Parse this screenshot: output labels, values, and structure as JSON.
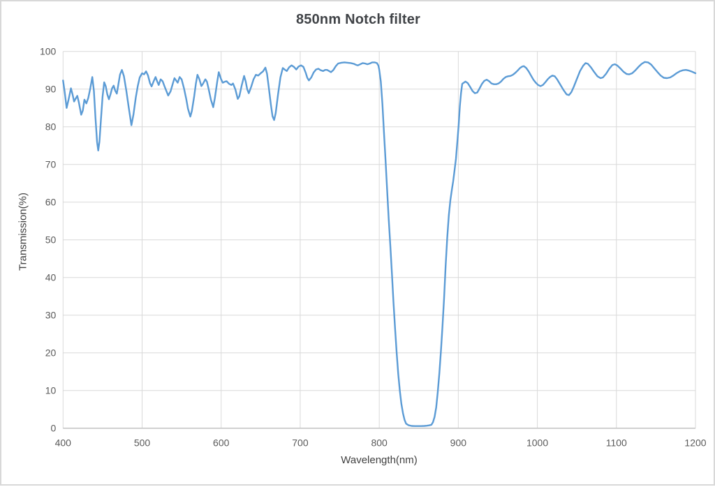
{
  "chart_data": {
    "type": "line",
    "title": "850nm Notch filter",
    "xlabel": "Wavelength(nm)",
    "ylabel": "Transmission(%)",
    "xlim": [
      400,
      1200
    ],
    "ylim": [
      0,
      100
    ],
    "x_ticks": [
      400,
      500,
      600,
      700,
      800,
      900,
      1000,
      1100,
      1200
    ],
    "y_ticks": [
      0,
      10,
      20,
      30,
      40,
      50,
      60,
      70,
      80,
      90,
      100
    ],
    "grid": true,
    "legend": "none",
    "colors": {
      "line": "#5B9BD5",
      "grid": "#D9D9D9",
      "axis": "#BFBFBF",
      "tick_text": "#595959",
      "title_text": "#404347"
    },
    "series": [
      {
        "points": [
          [
            400,
            92.3
          ],
          [
            402,
            89.3
          ],
          [
            404.5,
            85.0
          ],
          [
            407,
            87.2
          ],
          [
            410,
            90.2
          ],
          [
            412,
            88.6
          ],
          [
            414,
            86.7
          ],
          [
            416,
            87.5
          ],
          [
            418,
            88.2
          ],
          [
            420,
            86.5
          ],
          [
            423,
            83.2
          ],
          [
            425,
            84.3
          ],
          [
            427,
            87.2
          ],
          [
            429.5,
            86.2
          ],
          [
            432,
            87.7
          ],
          [
            434.5,
            90.3
          ],
          [
            437,
            93.2
          ],
          [
            439,
            89.5
          ],
          [
            441,
            82.5
          ],
          [
            443,
            76.0
          ],
          [
            444.5,
            73.7
          ],
          [
            446,
            76.0
          ],
          [
            448,
            82.0
          ],
          [
            450,
            88.0
          ],
          [
            452,
            91.8
          ],
          [
            454,
            90.8
          ],
          [
            456,
            88.6
          ],
          [
            458,
            87.3
          ],
          [
            460,
            88.6
          ],
          [
            462,
            90.2
          ],
          [
            464,
            90.9
          ],
          [
            466,
            89.6
          ],
          [
            468,
            88.8
          ],
          [
            470,
            91.2
          ],
          [
            472,
            93.8
          ],
          [
            474.5,
            95.1
          ],
          [
            477,
            93.4
          ],
          [
            480,
            89.6
          ],
          [
            483,
            85.2
          ],
          [
            486.5,
            80.4
          ],
          [
            489,
            83.2
          ],
          [
            492,
            87.8
          ],
          [
            494.5,
            90.8
          ],
          [
            497,
            93.1
          ],
          [
            500,
            94.2
          ],
          [
            502.5,
            93.9
          ],
          [
            505,
            94.7
          ],
          [
            507.5,
            93.6
          ],
          [
            510,
            91.6
          ],
          [
            512,
            90.7
          ],
          [
            514.5,
            92.0
          ],
          [
            517,
            93.2
          ],
          [
            519,
            92.1
          ],
          [
            521,
            91.1
          ],
          [
            523.5,
            92.6
          ],
          [
            526,
            92.1
          ],
          [
            529,
            90.4
          ],
          [
            533,
            88.3
          ],
          [
            536,
            89.4
          ],
          [
            539,
            91.6
          ],
          [
            541,
            92.9
          ],
          [
            543,
            92.3
          ],
          [
            545,
            91.7
          ],
          [
            547.5,
            93.2
          ],
          [
            550,
            92.6
          ],
          [
            553,
            90.2
          ],
          [
            556,
            87.2
          ],
          [
            558,
            84.8
          ],
          [
            561,
            82.7
          ],
          [
            563,
            84.2
          ],
          [
            566,
            88.2
          ],
          [
            568,
            91.4
          ],
          [
            570,
            93.8
          ],
          [
            572.5,
            92.6
          ],
          [
            575,
            90.8
          ],
          [
            577,
            91.4
          ],
          [
            580,
            92.6
          ],
          [
            582,
            92.0
          ],
          [
            584,
            90.2
          ],
          [
            587,
            87.2
          ],
          [
            590,
            85.2
          ],
          [
            592,
            87.6
          ],
          [
            595,
            92.0
          ],
          [
            597,
            94.5
          ],
          [
            600,
            92.6
          ],
          [
            602,
            91.7
          ],
          [
            605,
            92.0
          ],
          [
            607,
            92.1
          ],
          [
            610,
            91.4
          ],
          [
            613,
            91.1
          ],
          [
            615,
            91.5
          ],
          [
            618,
            89.9
          ],
          [
            621,
            87.4
          ],
          [
            623,
            88.1
          ],
          [
            626,
            91.0
          ],
          [
            629,
            93.5
          ],
          [
            631,
            92.1
          ],
          [
            633,
            89.9
          ],
          [
            635,
            88.9
          ],
          [
            638,
            90.6
          ],
          [
            641,
            92.6
          ],
          [
            644,
            93.8
          ],
          [
            647,
            93.6
          ],
          [
            650,
            94.2
          ],
          [
            653,
            94.7
          ],
          [
            656,
            95.7
          ],
          [
            658,
            94.1
          ],
          [
            660,
            90.8
          ],
          [
            663,
            85.8
          ],
          [
            665,
            82.8
          ],
          [
            667,
            81.8
          ],
          [
            669,
            83.6
          ],
          [
            672,
            88.6
          ],
          [
            675,
            93.1
          ],
          [
            678,
            95.6
          ],
          [
            681,
            95.1
          ],
          [
            683,
            94.8
          ],
          [
            686,
            95.8
          ],
          [
            689,
            96.3
          ],
          [
            692,
            95.9
          ],
          [
            695,
            95.2
          ],
          [
            698,
            96.0
          ],
          [
            701,
            96.3
          ],
          [
            704,
            95.9
          ],
          [
            707,
            94.3
          ],
          [
            709,
            93.0
          ],
          [
            711,
            92.3
          ],
          [
            714,
            93.1
          ],
          [
            717,
            94.4
          ],
          [
            720,
            95.2
          ],
          [
            723,
            95.4
          ],
          [
            726,
            95.0
          ],
          [
            729,
            94.8
          ],
          [
            731.5,
            95.1
          ],
          [
            734,
            95.1
          ],
          [
            736.5,
            94.8
          ],
          [
            739,
            94.5
          ],
          [
            742,
            95.1
          ],
          [
            745,
            96.1
          ],
          [
            748,
            96.8
          ],
          [
            752,
            97.0
          ],
          [
            756,
            97.1
          ],
          [
            760,
            97.0
          ],
          [
            764,
            96.9
          ],
          [
            768,
            96.7
          ],
          [
            771,
            96.4
          ],
          [
            773,
            96.3
          ],
          [
            776,
            96.6
          ],
          [
            779,
            96.9
          ],
          [
            782,
            96.8
          ],
          [
            785,
            96.6
          ],
          [
            788,
            96.8
          ],
          [
            791,
            97.1
          ],
          [
            794,
            97.1
          ],
          [
            797,
            96.9
          ],
          [
            799,
            96.2
          ],
          [
            800,
            95.2
          ],
          [
            802,
            92.0
          ],
          [
            804,
            86.0
          ],
          [
            806,
            78.5
          ],
          [
            808,
            71.0
          ],
          [
            810,
            63.0
          ],
          [
            812,
            55.5
          ],
          [
            814,
            48.5
          ],
          [
            816,
            41.0
          ],
          [
            818,
            33.5
          ],
          [
            820,
            26.5
          ],
          [
            822,
            20.0
          ],
          [
            824,
            14.5
          ],
          [
            826,
            10.0
          ],
          [
            828,
            6.5
          ],
          [
            830,
            4.0
          ],
          [
            832,
            2.2
          ],
          [
            834,
            1.2
          ],
          [
            837,
            0.8
          ],
          [
            841,
            0.6
          ],
          [
            845,
            0.55
          ],
          [
            849,
            0.55
          ],
          [
            853,
            0.55
          ],
          [
            857,
            0.6
          ],
          [
            860,
            0.65
          ],
          [
            863,
            0.75
          ],
          [
            866,
            0.9
          ],
          [
            868,
            1.6
          ],
          [
            870,
            3.0
          ],
          [
            872,
            5.5
          ],
          [
            874,
            9.5
          ],
          [
            876,
            14.5
          ],
          [
            878,
            20.5
          ],
          [
            880,
            27.0
          ],
          [
            882,
            34.5
          ],
          [
            884,
            43.0
          ],
          [
            886,
            50.5
          ],
          [
            888,
            56.5
          ],
          [
            890,
            60.5
          ],
          [
            892,
            63.5
          ],
          [
            893.5,
            65.5
          ],
          [
            895,
            68.0
          ],
          [
            897,
            71.5
          ],
          [
            899,
            76.5
          ],
          [
            900.5,
            80.5
          ],
          [
            902,
            85.5
          ],
          [
            903.5,
            89.0
          ],
          [
            905,
            91.4
          ],
          [
            907,
            91.7
          ],
          [
            909,
            92.0
          ],
          [
            912,
            91.6
          ],
          [
            915,
            90.6
          ],
          [
            918,
            89.5
          ],
          [
            921,
            88.9
          ],
          [
            924,
            89.1
          ],
          [
            927,
            90.2
          ],
          [
            930,
            91.4
          ],
          [
            933,
            92.2
          ],
          [
            936,
            92.5
          ],
          [
            939,
            92.1
          ],
          [
            942,
            91.5
          ],
          [
            945,
            91.3
          ],
          [
            948,
            91.3
          ],
          [
            951,
            91.5
          ],
          [
            954,
            92.0
          ],
          [
            957,
            92.7
          ],
          [
            960,
            93.2
          ],
          [
            963,
            93.4
          ],
          [
            966,
            93.5
          ],
          [
            969,
            93.8
          ],
          [
            972,
            94.3
          ],
          [
            975,
            94.9
          ],
          [
            978,
            95.6
          ],
          [
            981,
            96.0
          ],
          [
            983,
            96.1
          ],
          [
            986,
            95.6
          ],
          [
            989,
            94.7
          ],
          [
            992,
            93.6
          ],
          [
            995,
            92.5
          ],
          [
            998,
            91.7
          ],
          [
            1001,
            91.1
          ],
          [
            1004,
            90.8
          ],
          [
            1007,
            91.1
          ],
          [
            1010,
            91.8
          ],
          [
            1013,
            92.6
          ],
          [
            1016,
            93.2
          ],
          [
            1019,
            93.6
          ],
          [
            1022,
            93.4
          ],
          [
            1025,
            92.6
          ],
          [
            1029,
            91.2
          ],
          [
            1033,
            89.8
          ],
          [
            1037,
            88.6
          ],
          [
            1040,
            88.4
          ],
          [
            1043,
            89.2
          ],
          [
            1046,
            90.6
          ],
          [
            1050,
            92.7
          ],
          [
            1054,
            94.8
          ],
          [
            1058,
            96.2
          ],
          [
            1061,
            96.9
          ],
          [
            1064,
            96.7
          ],
          [
            1068,
            95.7
          ],
          [
            1072,
            94.5
          ],
          [
            1076,
            93.4
          ],
          [
            1080,
            92.9
          ],
          [
            1083,
            93.1
          ],
          [
            1087,
            94.1
          ],
          [
            1091,
            95.4
          ],
          [
            1095,
            96.4
          ],
          [
            1098,
            96.6
          ],
          [
            1101,
            96.3
          ],
          [
            1105,
            95.5
          ],
          [
            1109,
            94.6
          ],
          [
            1113,
            94.0
          ],
          [
            1116,
            93.9
          ],
          [
            1120,
            94.2
          ],
          [
            1124,
            95.0
          ],
          [
            1128,
            95.9
          ],
          [
            1132,
            96.7
          ],
          [
            1136,
            97.2
          ],
          [
            1140,
            97.1
          ],
          [
            1144,
            96.5
          ],
          [
            1148,
            95.5
          ],
          [
            1152,
            94.5
          ],
          [
            1156,
            93.6
          ],
          [
            1160,
            93.0
          ],
          [
            1164,
            92.9
          ],
          [
            1168,
            93.1
          ],
          [
            1172,
            93.6
          ],
          [
            1176,
            94.2
          ],
          [
            1180,
            94.7
          ],
          [
            1184,
            95.0
          ],
          [
            1188,
            95.1
          ],
          [
            1192,
            94.9
          ],
          [
            1196,
            94.6
          ],
          [
            1200,
            94.2
          ]
        ]
      }
    ]
  }
}
